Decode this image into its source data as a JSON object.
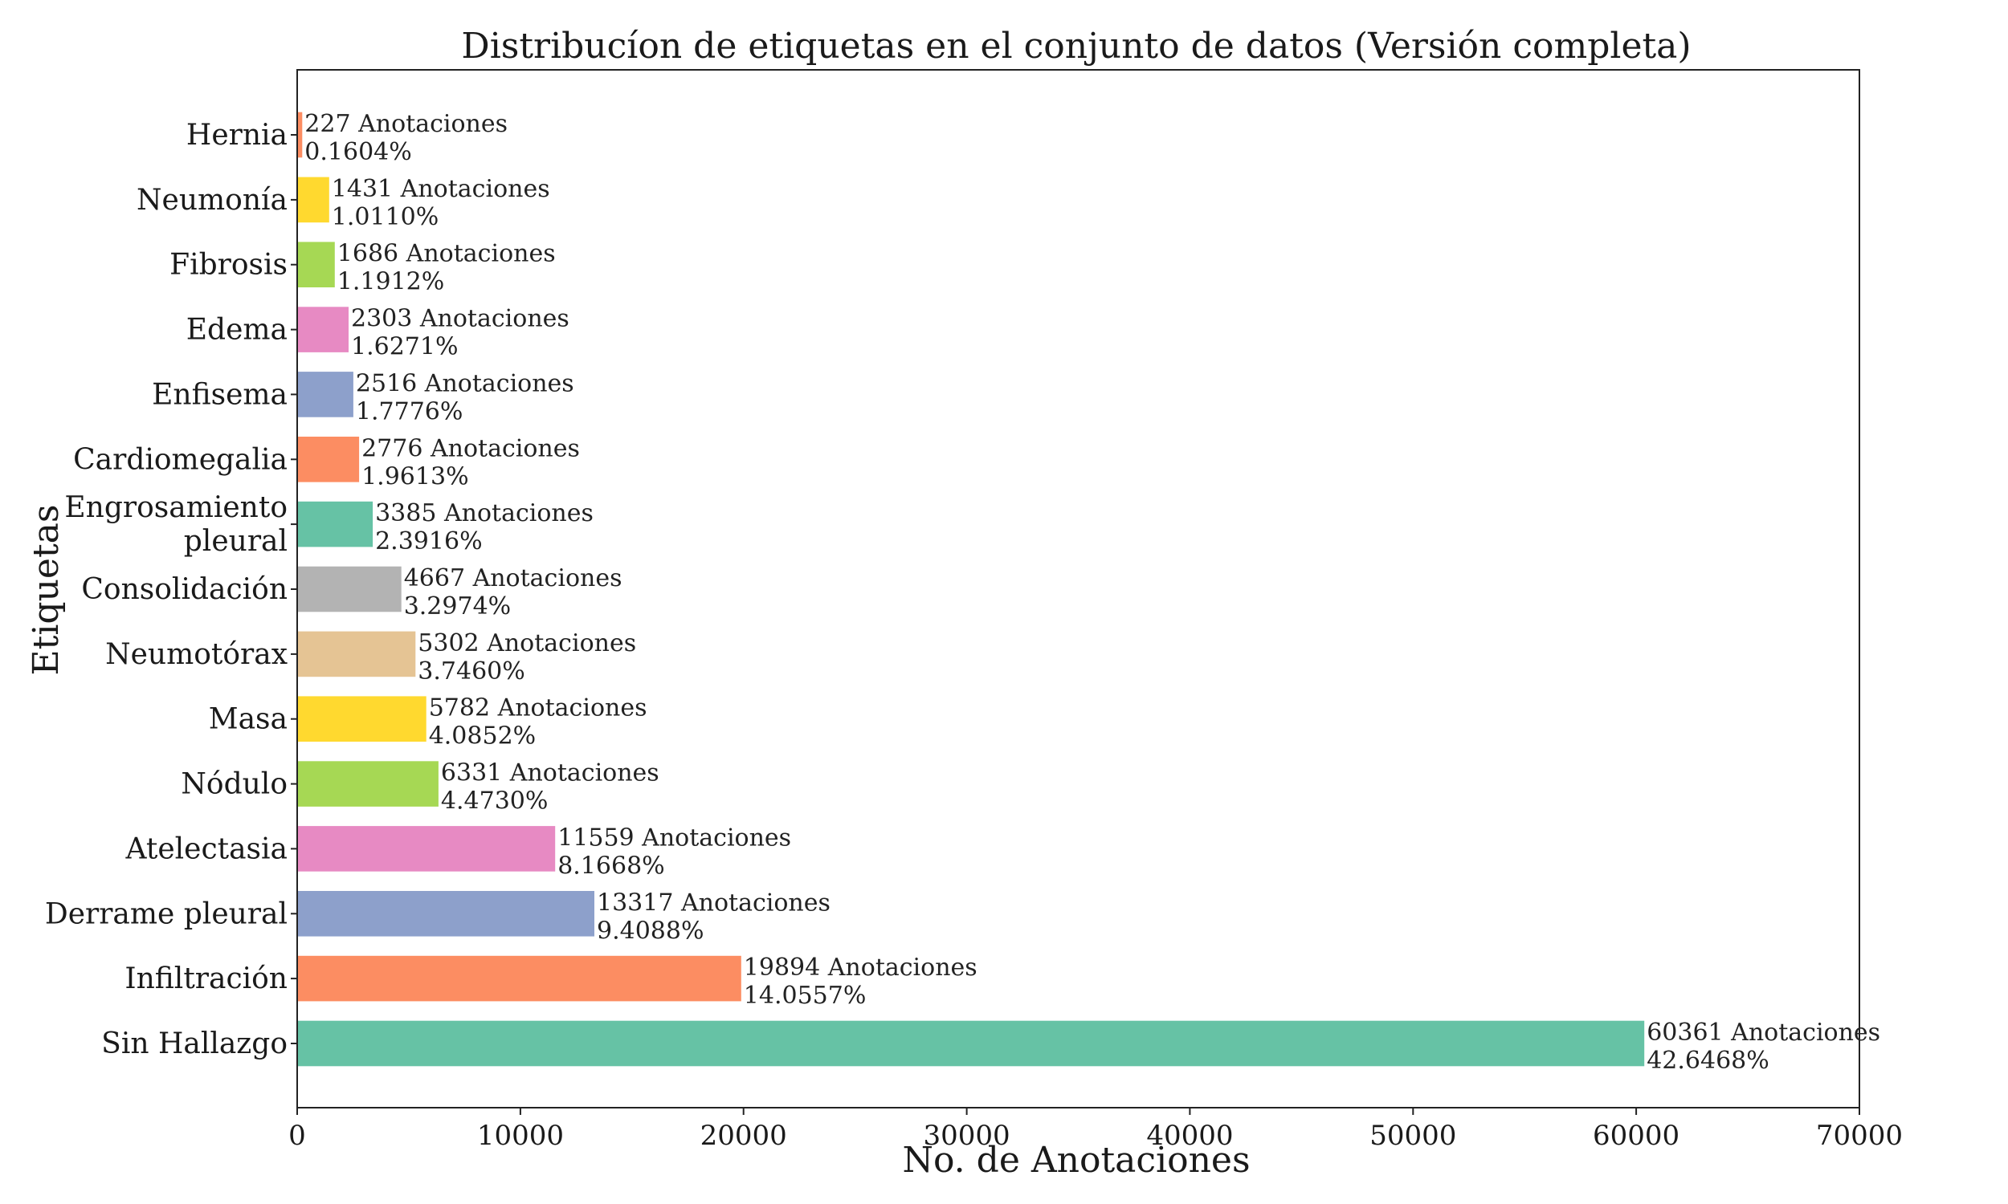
{
  "chart_data": {
    "type": "bar",
    "orientation": "horizontal",
    "title": "Distribucíon de etiquetas en el conjunto de datos (Versión completa)",
    "xlabel": "No. de Anotaciones",
    "ylabel": "Etiquetas",
    "xlim": [
      0,
      70000
    ],
    "xticks": [
      0,
      10000,
      20000,
      30000,
      40000,
      50000,
      60000,
      70000
    ],
    "grid": false,
    "legend": "none",
    "annotation_suffix": "Anotaciones",
    "bars": [
      {
        "label": "Hernia",
        "value": 227,
        "percent": "0.1604%",
        "color": "#fc8d62"
      },
      {
        "label": "Neumonía",
        "value": 1431,
        "percent": "1.0110%",
        "color": "#ffd92f"
      },
      {
        "label": "Fibrosis",
        "value": 1686,
        "percent": "1.1912%",
        "color": "#a6d854"
      },
      {
        "label": "Edema",
        "value": 2303,
        "percent": "1.6271%",
        "color": "#e78ac3"
      },
      {
        "label": "Enfisema",
        "value": 2516,
        "percent": "1.7776%",
        "color": "#8da0cb"
      },
      {
        "label": "Cardiomegalia",
        "value": 2776,
        "percent": "1.9613%",
        "color": "#fc8d62"
      },
      {
        "label": "Engrosamiento\npleural",
        "value": 3385,
        "percent": "2.3916%",
        "color": "#66c2a5"
      },
      {
        "label": "Consolidación",
        "value": 4667,
        "percent": "3.2974%",
        "color": "#b3b3b3"
      },
      {
        "label": "Neumotórax",
        "value": 5302,
        "percent": "3.7460%",
        "color": "#e5c494"
      },
      {
        "label": "Masa",
        "value": 5782,
        "percent": "4.0852%",
        "color": "#ffd92f"
      },
      {
        "label": "Nódulo",
        "value": 6331,
        "percent": "4.4730%",
        "color": "#a6d854"
      },
      {
        "label": "Atelectasia",
        "value": 11559,
        "percent": "8.1668%",
        "color": "#e78ac3"
      },
      {
        "label": "Derrame pleural",
        "value": 13317,
        "percent": "9.4088%",
        "color": "#8da0cb"
      },
      {
        "label": "Infiltración",
        "value": 19894,
        "percent": "14.0557%",
        "color": "#fc8d62"
      },
      {
        "label": "Sin Hallazgo",
        "value": 60361,
        "percent": "42.6468%",
        "color": "#66c2a5"
      }
    ]
  }
}
